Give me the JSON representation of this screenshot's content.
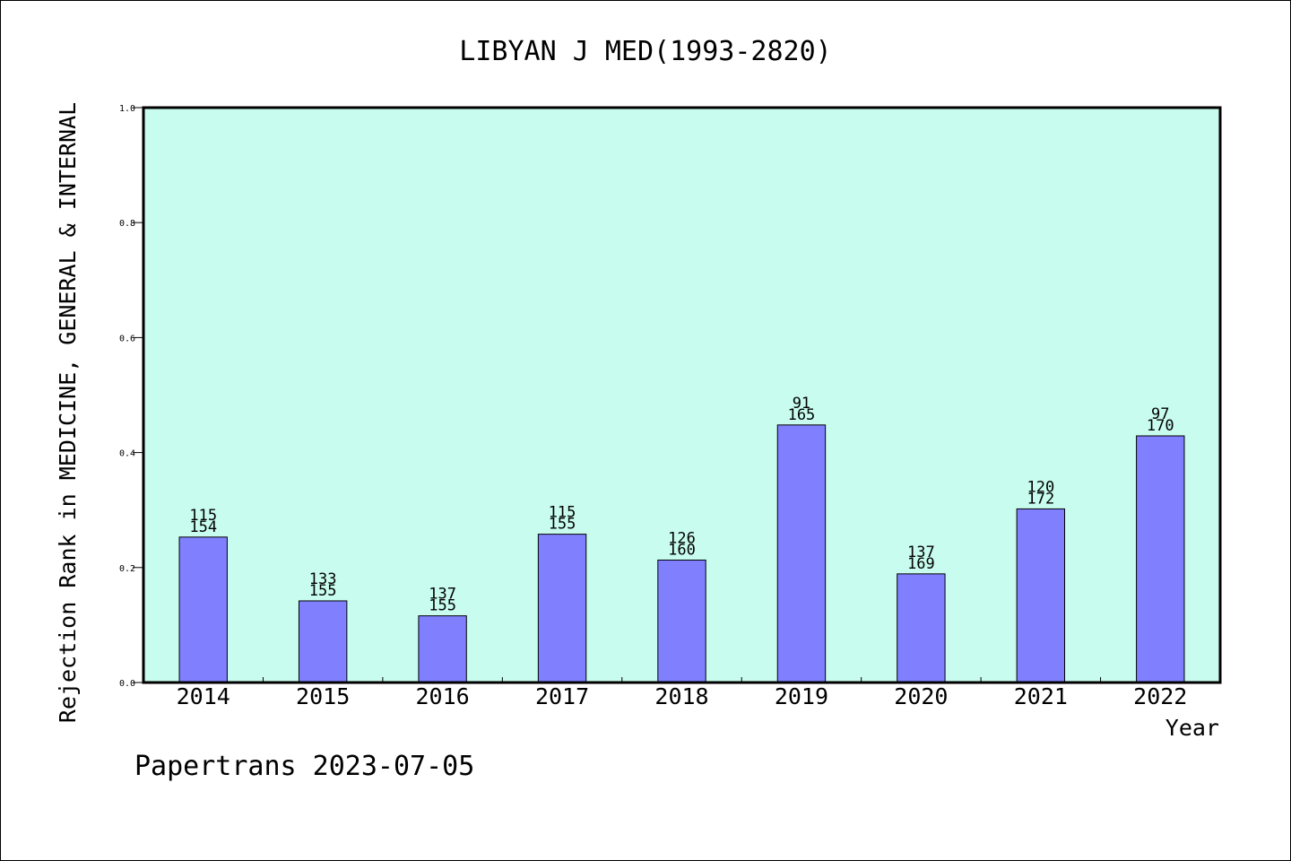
{
  "chart_data": {
    "type": "bar",
    "title": "LIBYAN J MED(1993-2820)",
    "ylabel": "Rejection Rank in MEDICINE, GENERAL & INTERNAL",
    "xlabel": "Year",
    "ylim": [
      0,
      1.0
    ],
    "yticks": [
      "0.0",
      "0.2",
      "0.4",
      "0.6",
      "0.8",
      "1.0"
    ],
    "categories": [
      "2014",
      "2015",
      "2016",
      "2017",
      "2018",
      "2019",
      "2020",
      "2021",
      "2022"
    ],
    "values": [
      0.253,
      0.142,
      0.116,
      0.258,
      0.213,
      0.448,
      0.189,
      0.302,
      0.429
    ],
    "rank_labels": [
      "115",
      "133",
      "137",
      "115",
      "126",
      "91",
      "137",
      "120",
      "97"
    ],
    "total_labels": [
      "154",
      "155",
      "155",
      "155",
      "160",
      "165",
      "169",
      "172",
      "170"
    ],
    "grid": false,
    "legend": "none",
    "colors": {
      "plot_background": "#c8fcee",
      "bar_fill": "#8080ff",
      "bar_stroke": "#000000"
    }
  },
  "footer": "Papertrans 2023-07-05"
}
